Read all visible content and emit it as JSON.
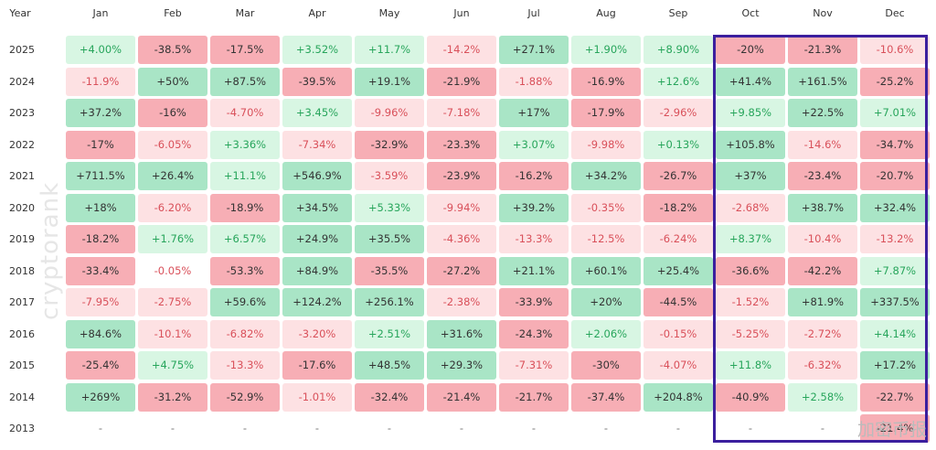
{
  "header": {
    "year_label": "Year",
    "months": [
      "Jan",
      "Feb",
      "Mar",
      "Apr",
      "May",
      "Jun",
      "Jul",
      "Aug",
      "Sep",
      "Oct",
      "Nov",
      "Dec"
    ]
  },
  "rows": [
    {
      "year": "2025",
      "values": [
        "+4.00%",
        "-38.5%",
        "-17.5%",
        "+3.52%",
        "+11.7%",
        "-14.2%",
        "+27.1%",
        "+1.90%",
        "+8.90%",
        "-20%",
        "-21.3%",
        "-10.6%"
      ]
    },
    {
      "year": "2024",
      "values": [
        "-11.9%",
        "+50%",
        "+87.5%",
        "-39.5%",
        "+19.1%",
        "-21.9%",
        "-1.88%",
        "-16.9%",
        "+12.6%",
        "+41.4%",
        "+161.5%",
        "-25.2%"
      ]
    },
    {
      "year": "2023",
      "values": [
        "+37.2%",
        "-16%",
        "-4.70%",
        "+3.45%",
        "-9.96%",
        "-7.18%",
        "+17%",
        "-17.9%",
        "-2.96%",
        "+9.85%",
        "+22.5%",
        "+7.01%"
      ]
    },
    {
      "year": "2022",
      "values": [
        "-17%",
        "-6.05%",
        "+3.36%",
        "-7.34%",
        "-32.9%",
        "-23.3%",
        "+3.07%",
        "-9.98%",
        "+0.13%",
        "+105.8%",
        "-14.6%",
        "-34.7%"
      ]
    },
    {
      "year": "2021",
      "values": [
        "+711.5%",
        "+26.4%",
        "+11.1%",
        "+546.9%",
        "-3.59%",
        "-23.9%",
        "-16.2%",
        "+34.2%",
        "-26.7%",
        "+37%",
        "-23.4%",
        "-20.7%"
      ]
    },
    {
      "year": "2020",
      "values": [
        "+18%",
        "-6.20%",
        "-18.9%",
        "+34.5%",
        "+5.33%",
        "-9.94%",
        "+39.2%",
        "-0.35%",
        "-18.2%",
        "-2.68%",
        "+38.7%",
        "+32.4%"
      ]
    },
    {
      "year": "2019",
      "values": [
        "-18.2%",
        "+1.76%",
        "+6.57%",
        "+24.9%",
        "+35.5%",
        "-4.36%",
        "-13.3%",
        "-12.5%",
        "-6.24%",
        "+8.37%",
        "-10.4%",
        "-13.2%"
      ]
    },
    {
      "year": "2018",
      "values": [
        "-33.4%",
        "-0.05%",
        "-53.3%",
        "+84.9%",
        "-35.5%",
        "-27.2%",
        "+21.1%",
        "+60.1%",
        "+25.4%",
        "-36.6%",
        "-42.2%",
        "+7.87%"
      ]
    },
    {
      "year": "2017",
      "values": [
        "-7.95%",
        "-2.75%",
        "+59.6%",
        "+124.2%",
        "+256.1%",
        "-2.38%",
        "-33.9%",
        "+20%",
        "-44.5%",
        "-1.52%",
        "+81.9%",
        "+337.5%"
      ]
    },
    {
      "year": "2016",
      "values": [
        "+84.6%",
        "-10.1%",
        "-6.82%",
        "-3.20%",
        "+2.51%",
        "+31.6%",
        "-24.3%",
        "+2.06%",
        "-0.15%",
        "-5.25%",
        "-2.72%",
        "+4.14%"
      ]
    },
    {
      "year": "2015",
      "values": [
        "-25.4%",
        "+4.75%",
        "-13.3%",
        "-17.6%",
        "+48.5%",
        "+29.3%",
        "-7.31%",
        "-30%",
        "-4.07%",
        "+11.8%",
        "-6.32%",
        "+17.2%"
      ]
    },
    {
      "year": "2014",
      "values": [
        "+269%",
        "-31.2%",
        "-52.9%",
        "-1.01%",
        "-32.4%",
        "-21.4%",
        "-21.7%",
        "-37.4%",
        "+204.8%",
        "-40.9%",
        "+2.58%",
        "-22.7%"
      ]
    },
    {
      "year": "2013",
      "values": [
        "-",
        "-",
        "-",
        "-",
        "-",
        "-",
        "-",
        "-",
        "-",
        "-",
        "-",
        "-21.4%"
      ]
    }
  ],
  "watermark": "cryptorank",
  "source_watermark": "加密币报"
}
